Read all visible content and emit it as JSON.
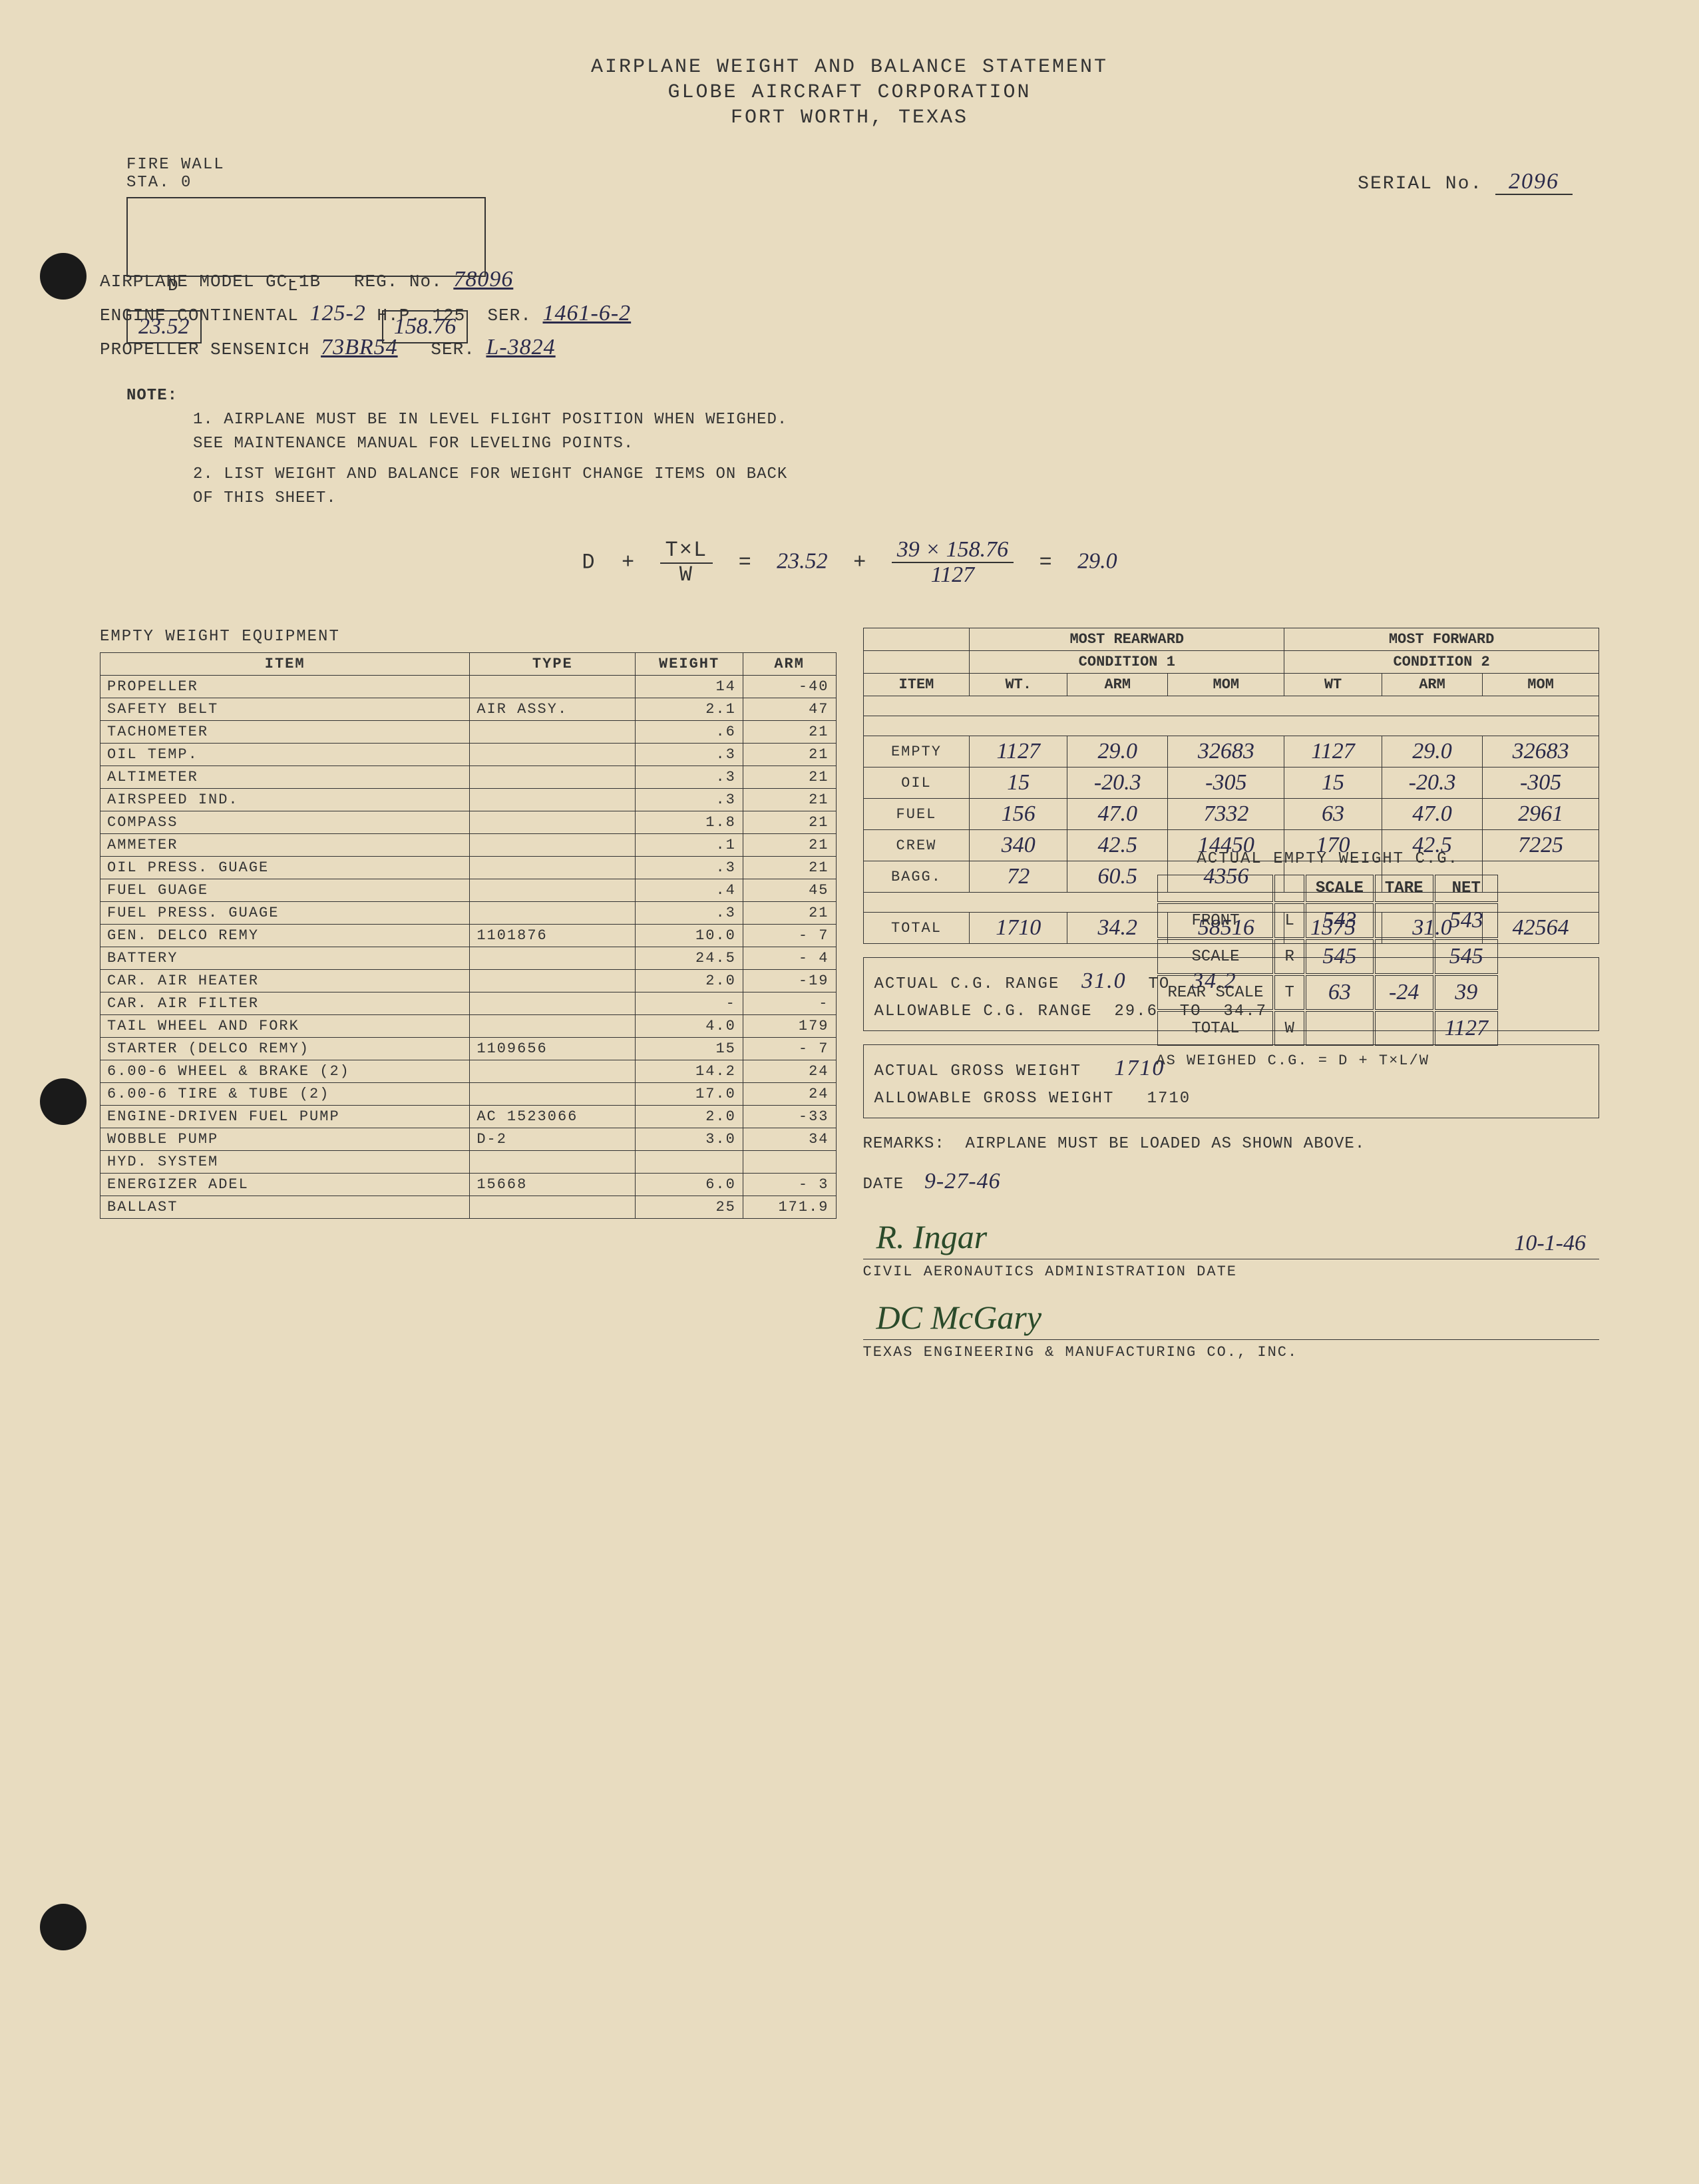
{
  "header": {
    "line1": "AIRPLANE WEIGHT AND BALANCE STATEMENT",
    "line2": "GLOBE AIRCRAFT CORPORATION",
    "line3": "FORT WORTH, TEXAS"
  },
  "firewall": {
    "label": "FIRE WALL",
    "sta": "STA. 0",
    "d": "D",
    "l": "L",
    "dim1": "23.52",
    "dim2": "158.76"
  },
  "serial": {
    "label": "SERIAL No.",
    "value": "2096"
  },
  "info": {
    "model_label": "AIRPLANE MODEL",
    "model": "GC-1B",
    "reg_label": "REG. No.",
    "reg": "78096",
    "engine_label": "ENGINE CONTINENTAL",
    "engine": "125-2",
    "hp_label": "H.P.",
    "hp": "125",
    "engine_ser_label": "SER.",
    "engine_ser": "1461-6-2",
    "prop_label": "PROPELLER SENSENICH",
    "prop": "73BR54",
    "prop_ser_label": "SER.",
    "prop_ser": "L-3824"
  },
  "notes": {
    "label": "NOTE:",
    "n1": "1. AIRPLANE MUST BE IN LEVEL FLIGHT POSITION WHEN WEIGHED. SEE MAINTENANCE MANUAL FOR LEVELING POINTS.",
    "n2": "2. LIST WEIGHT AND BALANCE FOR WEIGHT CHANGE ITEMS ON BACK OF THIS SHEET."
  },
  "cg_table": {
    "title": "ACTUAL EMPTY WEIGHT C.G.",
    "cols": [
      "",
      "",
      "SCALE",
      "TARE",
      "NET"
    ],
    "rows": [
      [
        "FRONT",
        "L",
        "543",
        "",
        "543"
      ],
      [
        "SCALE",
        "R",
        "545",
        "",
        "545"
      ],
      [
        "REAR SCALE",
        "T",
        "63",
        "-24",
        "39"
      ],
      [
        "TOTAL",
        "W",
        "",
        "",
        "1127"
      ]
    ],
    "formula_label": "AS WEIGHED C.G. = D + T×L/W"
  },
  "formula": {
    "d": "D",
    "plus": "+",
    "txl": "T×L",
    "w": "W",
    "eq": "=",
    "v1": "23.52",
    "v2": "39 × 158.76",
    "v3": "1127",
    "result": "29.0"
  },
  "equipment": {
    "title": "EMPTY WEIGHT EQUIPMENT",
    "cols": [
      "ITEM",
      "TYPE",
      "WEIGHT",
      "ARM"
    ],
    "rows": [
      [
        "PROPELLER",
        "",
        "14",
        "-40"
      ],
      [
        "SAFETY BELT",
        "AIR ASSY.",
        "2.1",
        "47"
      ],
      [
        "TACHOMETER",
        "",
        ".6",
        "21"
      ],
      [
        "OIL TEMP.",
        "",
        ".3",
        "21"
      ],
      [
        "ALTIMETER",
        "",
        ".3",
        "21"
      ],
      [
        "AIRSPEED IND.",
        "",
        ".3",
        "21"
      ],
      [
        "COMPASS",
        "",
        "1.8",
        "21"
      ],
      [
        "AMMETER",
        "",
        ".1",
        "21"
      ],
      [
        "OIL PRESS. GUAGE",
        "",
        ".3",
        "21"
      ],
      [
        "FUEL GUAGE",
        "",
        ".4",
        "45"
      ],
      [
        "FUEL PRESS. GUAGE",
        "",
        ".3",
        "21"
      ],
      [
        "GEN. DELCO REMY",
        "1101876",
        "10.0",
        "- 7"
      ],
      [
        "BATTERY",
        "",
        "24.5",
        "- 4"
      ],
      [
        "CAR. AIR HEATER",
        "",
        "2.0",
        "-19"
      ],
      [
        "CAR. AIR FILTER",
        "",
        "-",
        "-"
      ],
      [
        "TAIL WHEEL AND FORK",
        "",
        "4.0",
        "179"
      ],
      [
        "STARTER (DELCO REMY)",
        "1109656",
        "15",
        "- 7"
      ],
      [
        "6.00-6 WHEEL & BRAKE (2)",
        "",
        "14.2",
        "24"
      ],
      [
        "6.00-6 TIRE & TUBE (2)",
        "",
        "17.0",
        "24"
      ],
      [
        "ENGINE-DRIVEN FUEL PUMP",
        "AC 1523066",
        "2.0",
        "-33"
      ],
      [
        "WOBBLE PUMP",
        "D-2",
        "3.0",
        "34"
      ],
      [
        "HYD. SYSTEM",
        "",
        "",
        ""
      ],
      [
        "ENERGIZER ADEL",
        "15668",
        "6.0",
        "- 3"
      ],
      [
        "BALLAST",
        "",
        "25",
        "171.9"
      ]
    ]
  },
  "conditions": {
    "h1": "MOST REARWARD",
    "h2": "MOST FORWARD",
    "sh1": "CONDITION 1",
    "sh2": "CONDITION 2",
    "cols": [
      "ITEM",
      "WT.",
      "ARM",
      "MOM",
      "WT",
      "ARM",
      "MOM"
    ],
    "rows": [
      [
        "EMPTY",
        "1127",
        "29.0",
        "32683",
        "1127",
        "29.0",
        "32683"
      ],
      [
        "OIL",
        "15",
        "-20.3",
        "-305",
        "15",
        "-20.3",
        "-305"
      ],
      [
        "FUEL",
        "156",
        "47.0",
        "7332",
        "63",
        "47.0",
        "2961"
      ],
      [
        "CREW",
        "340",
        "42.5",
        "14450",
        "170",
        "42.5",
        "7225"
      ],
      [
        "BAGG.",
        "72",
        "60.5",
        "4356",
        "",
        "",
        ""
      ]
    ],
    "total": [
      "TOTAL",
      "1710",
      "34.2",
      "58516",
      "1375",
      "31.0",
      "42564"
    ]
  },
  "summary": {
    "actual_cg_label": "ACTUAL C.G. RANGE",
    "actual_cg_from": "31.0",
    "to": "TO",
    "actual_cg_to": "34.2",
    "allow_cg_label": "ALLOWABLE C.G. RANGE",
    "allow_cg_from": "29.6",
    "allow_cg_to": "34.7",
    "actual_gw_label": "ACTUAL GROSS WEIGHT",
    "actual_gw": "1710",
    "allow_gw_label": "ALLOWABLE GROSS WEIGHT",
    "allow_gw": "1710"
  },
  "remarks": {
    "label": "REMARKS:",
    "text": "AIRPLANE MUST BE LOADED AS SHOWN ABOVE.",
    "date_label": "DATE",
    "date": "9-27-46"
  },
  "sigs": {
    "sig1": "R. Ingar",
    "sig1_date": "10-1-46",
    "sig1_label": "CIVIL AERONAUTICS ADMINISTRATION    DATE",
    "sig2": "DC McGary",
    "sig2_label": "TEXAS ENGINEERING & MANUFACTURING CO., INC."
  }
}
